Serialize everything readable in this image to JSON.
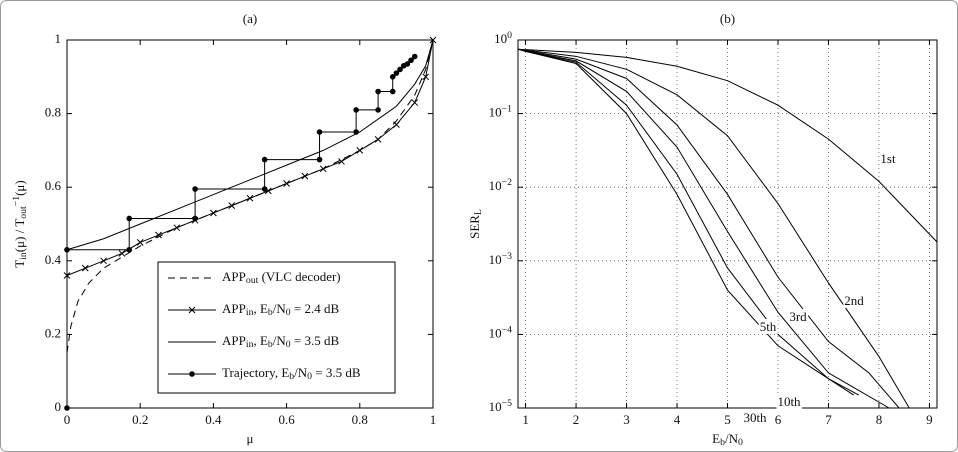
{
  "chart_data": [
    {
      "type": "line",
      "title": "(a)",
      "xlabel": "μ",
      "ylabel": [
        "T",
        "in",
        "(μ) / T",
        "out",
        "−1",
        "(μ)"
      ],
      "xlim": [
        0,
        1
      ],
      "ylim": [
        0,
        1
      ],
      "xticks": [
        0,
        0.2,
        0.4,
        0.6,
        0.8,
        1
      ],
      "yticks": [
        0,
        0.2,
        0.4,
        0.6,
        0.8,
        1
      ],
      "grid": false,
      "legend": "lower right",
      "series": [
        {
          "name": [
            "APP",
            "out",
            " (VLC decoder)"
          ],
          "color": "#000000",
          "linestyle": "dashed",
          "marker": "none",
          "x": [
            0,
            0.01,
            0.03,
            0.06,
            0.1,
            0.15,
            0.2,
            0.3,
            0.4,
            0.5,
            0.6,
            0.7,
            0.8,
            0.85,
            0.9,
            0.95,
            0.98,
            1
          ],
          "values": [
            0.15,
            0.22,
            0.29,
            0.34,
            0.38,
            0.41,
            0.44,
            0.49,
            0.53,
            0.57,
            0.61,
            0.65,
            0.7,
            0.73,
            0.78,
            0.85,
            0.92,
            1
          ]
        },
        {
          "name": [
            "APP",
            "in",
            ", E",
            "b",
            "/N",
            "0",
            " = 2.4 dB"
          ],
          "color": "#000000",
          "linestyle": "solid",
          "marker": "x",
          "x": [
            0,
            0.05,
            0.1,
            0.15,
            0.2,
            0.25,
            0.3,
            0.35,
            0.4,
            0.45,
            0.5,
            0.55,
            0.6,
            0.65,
            0.7,
            0.75,
            0.8,
            0.85,
            0.9,
            0.95,
            0.98,
            1
          ],
          "values": [
            0.36,
            0.38,
            0.4,
            0.42,
            0.45,
            0.47,
            0.49,
            0.51,
            0.53,
            0.55,
            0.57,
            0.59,
            0.61,
            0.63,
            0.65,
            0.67,
            0.7,
            0.73,
            0.77,
            0.83,
            0.9,
            1
          ]
        },
        {
          "name": [
            "APP",
            "in",
            ", E",
            "b",
            "/N",
            "0",
            " = 3.5 dB"
          ],
          "color": "#000000",
          "linestyle": "solid",
          "marker": "none",
          "x": [
            0,
            0.1,
            0.2,
            0.3,
            0.4,
            0.5,
            0.6,
            0.7,
            0.8,
            0.9,
            0.95,
            0.98,
            1
          ],
          "values": [
            0.43,
            0.46,
            0.5,
            0.54,
            0.58,
            0.62,
            0.66,
            0.7,
            0.75,
            0.82,
            0.88,
            0.93,
            1
          ]
        },
        {
          "name": [
            "Trajectory, E",
            "b",
            "/N",
            "0",
            " = 3.5 dB"
          ],
          "color": "#000000",
          "linestyle": "solid",
          "marker": "o",
          "x": [
            0,
            0,
            0.17,
            0.17,
            0.35,
            0.35,
            0.54,
            0.54,
            0.69,
            0.69,
            0.79,
            0.79,
            0.85,
            0.85,
            0.89,
            0.89,
            0.9,
            0.91,
            0.92,
            0.93,
            0.94,
            0.95
          ],
          "values": [
            0,
            0.43,
            0.43,
            0.515,
            0.515,
            0.595,
            0.595,
            0.675,
            0.675,
            0.75,
            0.75,
            0.81,
            0.81,
            0.86,
            0.86,
            0.9,
            0.91,
            0.92,
            0.93,
            0.935,
            0.945,
            0.955
          ]
        }
      ]
    },
    {
      "type": "line",
      "title": "(b)",
      "xlabel": [
        "E",
        "b",
        "/N",
        "0"
      ],
      "ylabel": [
        "SER",
        "L"
      ],
      "xlim": [
        0.85,
        9.15
      ],
      "ylim": [
        1e-05,
        1
      ],
      "yscale": "log",
      "xticks": [
        1,
        2,
        3,
        4,
        5,
        6,
        7,
        8,
        9
      ],
      "yticks": [
        {
          "value": 1e-05,
          "label": [
            "10",
            "−5"
          ]
        },
        {
          "value": 0.0001,
          "label": [
            "10",
            "−4"
          ]
        },
        {
          "value": 0.001,
          "label": [
            "10",
            "−3"
          ]
        },
        {
          "value": 0.01,
          "label": [
            "10",
            "−2"
          ]
        },
        {
          "value": 0.1,
          "label": [
            "10",
            "−1"
          ]
        },
        {
          "value": 1,
          "label": [
            "10",
            "0"
          ]
        }
      ],
      "grid": true,
      "series": [
        {
          "name": "1st",
          "color": "#000000",
          "x": [
            0.85,
            1,
            2,
            3,
            4,
            5,
            6,
            7,
            8,
            9.15
          ],
          "values": [
            0.75,
            0.74,
            0.68,
            0.58,
            0.44,
            0.28,
            0.13,
            0.045,
            0.012,
            0.0018
          ]
        },
        {
          "name": "2nd",
          "color": "#000000",
          "x": [
            0.85,
            1,
            2,
            3,
            4,
            5,
            6,
            7,
            8,
            8.6
          ],
          "values": [
            0.75,
            0.73,
            0.6,
            0.4,
            0.18,
            0.05,
            0.006,
            0.0005,
            5e-05,
            1e-05
          ]
        },
        {
          "name": "3rd",
          "color": "#000000",
          "x": [
            0.85,
            1,
            2,
            3,
            4,
            5,
            6,
            7,
            7.8,
            8.4
          ],
          "values": [
            0.75,
            0.72,
            0.55,
            0.3,
            0.07,
            0.008,
            0.0006,
            8e-05,
            3e-05,
            1e-05
          ]
        },
        {
          "name": "5th",
          "color": "#000000",
          "x": [
            0.85,
            1,
            2,
            3,
            4,
            5,
            6,
            7,
            8.2
          ],
          "values": [
            0.75,
            0.71,
            0.52,
            0.2,
            0.035,
            0.0025,
            0.0002,
            3e-05,
            1e-05
          ]
        },
        {
          "name": "10th",
          "color": "#000000",
          "x": [
            0.85,
            1,
            2,
            3,
            4,
            5,
            6,
            7,
            7.6
          ],
          "values": [
            0.75,
            0.7,
            0.5,
            0.13,
            0.015,
            0.0008,
            0.0001,
            2.5e-05,
            1.5e-05
          ]
        },
        {
          "name": "30th",
          "color": "#000000",
          "x": [
            0.85,
            1,
            2,
            3,
            4,
            5,
            6,
            7,
            7.5
          ],
          "values": [
            0.75,
            0.7,
            0.48,
            0.1,
            0.008,
            0.0004,
            7e-05,
            2.5e-05,
            1.5e-05
          ]
        }
      ]
    }
  ]
}
